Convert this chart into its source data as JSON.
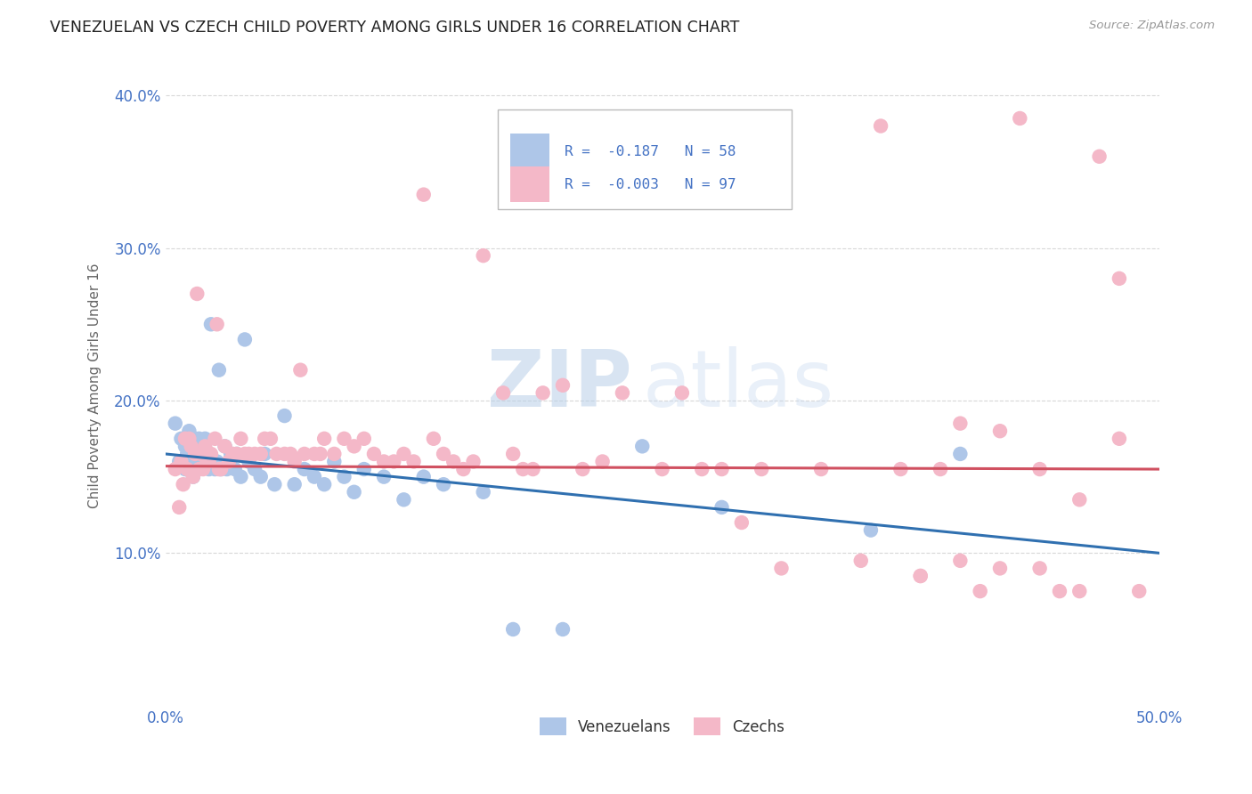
{
  "title": "VENEZUELAN VS CZECH CHILD POVERTY AMONG GIRLS UNDER 16 CORRELATION CHART",
  "source": "Source: ZipAtlas.com",
  "ylabel": "Child Poverty Among Girls Under 16",
  "xlim": [
    0.0,
    0.5
  ],
  "ylim": [
    0.0,
    0.42
  ],
  "yticks": [
    0.1,
    0.2,
    0.3,
    0.4
  ],
  "yticklabels": [
    "10.0%",
    "20.0%",
    "30.0%",
    "40.0%"
  ],
  "legend_R": [
    "-0.187",
    "-0.003"
  ],
  "legend_N": [
    "58",
    "97"
  ],
  "venezuelan_color": "#aec6e8",
  "czech_color": "#f4b8c8",
  "venezuelan_line_color": "#3070b0",
  "czech_line_color": "#d05060",
  "background_color": "#ffffff",
  "grid_color": "#d8d8d8",
  "watermark_zip": "ZIP",
  "watermark_atlas": "atlas",
  "title_color": "#222222",
  "axis_label_color": "#666666",
  "tick_color": "#4472c4",
  "ven_line_x0": 0.0,
  "ven_line_y0": 0.165,
  "ven_line_x1": 0.5,
  "ven_line_y1": 0.1,
  "cze_line_x0": 0.0,
  "cze_line_y0": 0.157,
  "cze_line_x1": 0.5,
  "cze_line_y1": 0.155,
  "venezuelan_x": [
    0.005,
    0.007,
    0.008,
    0.01,
    0.01,
    0.011,
    0.012,
    0.013,
    0.014,
    0.015,
    0.015,
    0.016,
    0.017,
    0.018,
    0.019,
    0.02,
    0.02,
    0.021,
    0.022,
    0.023,
    0.024,
    0.025,
    0.026,
    0.027,
    0.028,
    0.03,
    0.031,
    0.032,
    0.033,
    0.035,
    0.036,
    0.038,
    0.04,
    0.042,
    0.045,
    0.048,
    0.05,
    0.055,
    0.06,
    0.065,
    0.07,
    0.075,
    0.08,
    0.085,
    0.09,
    0.095,
    0.1,
    0.11,
    0.12,
    0.13,
    0.14,
    0.16,
    0.175,
    0.2,
    0.24,
    0.28,
    0.355,
    0.4
  ],
  "venezuelan_y": [
    0.185,
    0.16,
    0.175,
    0.155,
    0.17,
    0.165,
    0.18,
    0.16,
    0.15,
    0.175,
    0.165,
    0.17,
    0.175,
    0.165,
    0.16,
    0.165,
    0.175,
    0.16,
    0.155,
    0.25,
    0.16,
    0.155,
    0.16,
    0.22,
    0.155,
    0.17,
    0.155,
    0.16,
    0.165,
    0.155,
    0.165,
    0.15,
    0.24,
    0.16,
    0.155,
    0.15,
    0.165,
    0.145,
    0.19,
    0.145,
    0.155,
    0.15,
    0.145,
    0.16,
    0.15,
    0.14,
    0.155,
    0.15,
    0.135,
    0.15,
    0.145,
    0.14,
    0.05,
    0.05,
    0.17,
    0.13,
    0.115,
    0.165
  ],
  "czech_x": [
    0.005,
    0.007,
    0.008,
    0.009,
    0.01,
    0.011,
    0.012,
    0.013,
    0.014,
    0.015,
    0.016,
    0.017,
    0.018,
    0.019,
    0.02,
    0.021,
    0.022,
    0.023,
    0.025,
    0.026,
    0.027,
    0.028,
    0.03,
    0.032,
    0.034,
    0.036,
    0.038,
    0.04,
    0.042,
    0.045,
    0.048,
    0.05,
    0.053,
    0.056,
    0.06,
    0.063,
    0.065,
    0.068,
    0.07,
    0.075,
    0.078,
    0.08,
    0.085,
    0.09,
    0.095,
    0.1,
    0.105,
    0.11,
    0.115,
    0.12,
    0.125,
    0.13,
    0.135,
    0.14,
    0.145,
    0.15,
    0.155,
    0.16,
    0.17,
    0.175,
    0.18,
    0.185,
    0.19,
    0.2,
    0.21,
    0.22,
    0.23,
    0.24,
    0.25,
    0.26,
    0.27,
    0.28,
    0.29,
    0.3,
    0.31,
    0.33,
    0.35,
    0.36,
    0.37,
    0.38,
    0.39,
    0.4,
    0.41,
    0.42,
    0.43,
    0.44,
    0.45,
    0.46,
    0.47,
    0.48,
    0.49,
    0.38,
    0.4,
    0.42,
    0.44,
    0.46,
    0.48
  ],
  "czech_y": [
    0.155,
    0.13,
    0.16,
    0.145,
    0.175,
    0.155,
    0.175,
    0.17,
    0.15,
    0.165,
    0.27,
    0.155,
    0.165,
    0.155,
    0.17,
    0.16,
    0.16,
    0.165,
    0.175,
    0.25,
    0.155,
    0.155,
    0.17,
    0.16,
    0.165,
    0.165,
    0.175,
    0.165,
    0.165,
    0.165,
    0.165,
    0.175,
    0.175,
    0.165,
    0.165,
    0.165,
    0.16,
    0.22,
    0.165,
    0.165,
    0.165,
    0.175,
    0.165,
    0.175,
    0.17,
    0.175,
    0.165,
    0.16,
    0.16,
    0.165,
    0.16,
    0.335,
    0.175,
    0.165,
    0.16,
    0.155,
    0.16,
    0.295,
    0.205,
    0.165,
    0.155,
    0.155,
    0.205,
    0.21,
    0.155,
    0.16,
    0.205,
    0.335,
    0.155,
    0.205,
    0.155,
    0.155,
    0.12,
    0.155,
    0.09,
    0.155,
    0.095,
    0.38,
    0.155,
    0.085,
    0.155,
    0.185,
    0.075,
    0.09,
    0.385,
    0.155,
    0.075,
    0.135,
    0.36,
    0.175,
    0.075,
    0.085,
    0.095,
    0.18,
    0.09,
    0.075,
    0.28
  ]
}
